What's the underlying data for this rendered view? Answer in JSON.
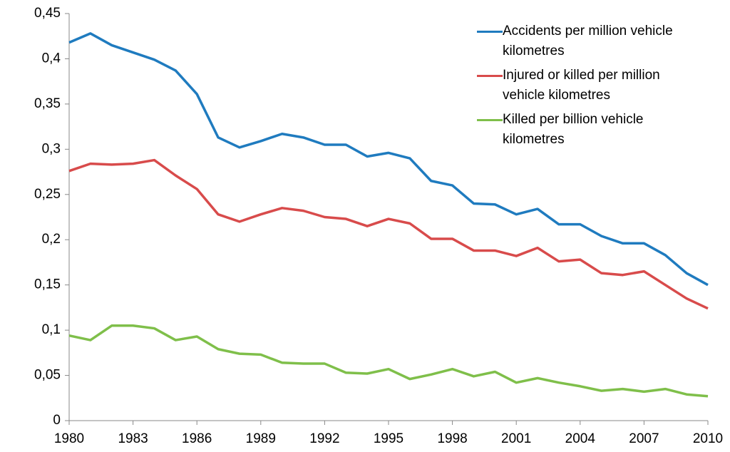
{
  "chart_data": {
    "type": "line",
    "x": [
      1980,
      1981,
      1982,
      1983,
      1984,
      1985,
      1986,
      1987,
      1988,
      1989,
      1990,
      1991,
      1992,
      1993,
      1994,
      1995,
      1996,
      1997,
      1998,
      1999,
      2000,
      2001,
      2002,
      2003,
      2004,
      2005,
      2006,
      2007,
      2008,
      2009,
      2010
    ],
    "series": [
      {
        "name": "Accidents per million vehicle kilometres",
        "color": "#1f7bbf",
        "values": [
          0.418,
          0.428,
          0.415,
          0.407,
          0.399,
          0.387,
          0.361,
          0.313,
          0.302,
          0.309,
          0.317,
          0.313,
          0.305,
          0.305,
          0.292,
          0.296,
          0.29,
          0.265,
          0.26,
          0.24,
          0.239,
          0.228,
          0.234,
          0.217,
          0.217,
          0.204,
          0.196,
          0.196,
          0.183,
          0.163,
          0.15
        ]
      },
      {
        "name": "Injured or killed per million vehicle kilometres",
        "color": "#d84b4b",
        "values": [
          0.276,
          0.284,
          0.283,
          0.284,
          0.288,
          0.271,
          0.256,
          0.228,
          0.22,
          0.228,
          0.235,
          0.232,
          0.225,
          0.223,
          0.215,
          0.223,
          0.218,
          0.201,
          0.201,
          0.188,
          0.188,
          0.182,
          0.191,
          0.176,
          0.178,
          0.163,
          0.161,
          0.165,
          0.15,
          0.135,
          0.124
        ]
      },
      {
        "name": "Killed per billion vehicle kilometres",
        "color": "#7fbf4a",
        "values": [
          0.094,
          0.089,
          0.105,
          0.105,
          0.102,
          0.089,
          0.093,
          0.079,
          0.074,
          0.073,
          0.064,
          0.063,
          0.063,
          0.053,
          0.052,
          0.057,
          0.046,
          0.051,
          0.057,
          0.049,
          0.054,
          0.042,
          0.047,
          0.042,
          0.038,
          0.033,
          0.035,
          0.032,
          0.035,
          0.029,
          0.027
        ]
      }
    ],
    "xlim": [
      1980,
      2010
    ],
    "xticks": [
      1980,
      1983,
      1986,
      1989,
      1992,
      1995,
      1998,
      2001,
      2004,
      2007,
      2010
    ],
    "ylim": [
      0,
      0.45
    ],
    "yticks": [
      0,
      {
        "value": 0.05,
        "label": "0,05"
      },
      {
        "value": 0.1,
        "label": "0,1"
      },
      {
        "value": 0.15,
        "label": "0,15"
      },
      {
        "value": 0.2,
        "label": "0,2"
      },
      {
        "value": 0.25,
        "label": "0,25"
      },
      {
        "value": 0.3,
        "label": "0,3"
      },
      {
        "value": 0.35,
        "label": "0,35"
      },
      {
        "value": 0.4,
        "label": "0,4"
      },
      {
        "value": 0.45,
        "label": "0,45"
      }
    ],
    "legend": "top-right"
  }
}
